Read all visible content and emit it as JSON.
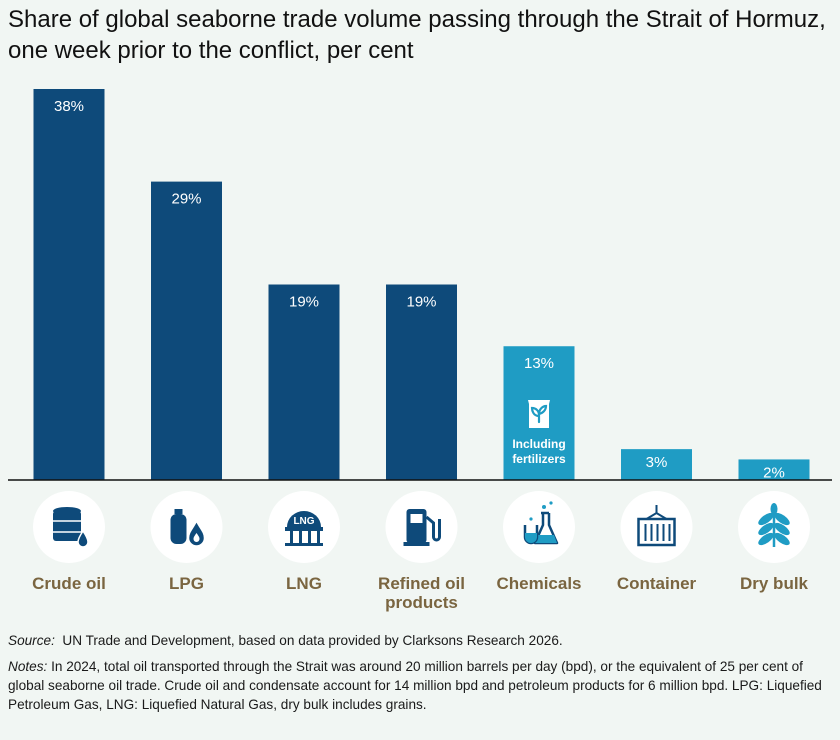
{
  "title": "Share of global seaborne trade volume passing through the Strait of Hormuz, one week prior to the conflict, per cent",
  "colors": {
    "dark_bar": "#0e4a7a",
    "light_bar": "#1f9cc4",
    "icon_circle": "#ffffff",
    "label": "#7a6540",
    "background": "#f1f6f3"
  },
  "chart_data": {
    "type": "bar",
    "title": "Share of global seaborne trade volume passing through the Strait of Hormuz, one week prior to the conflict, per cent",
    "categories": [
      "Crude oil",
      "LPG",
      "LNG",
      "Refined oil products",
      "Chemicals",
      "Container",
      "Dry bulk"
    ],
    "category_lines": [
      [
        "Crude oil"
      ],
      [
        "LPG"
      ],
      [
        "LNG"
      ],
      [
        "Refined oil",
        "products"
      ],
      [
        "Chemicals"
      ],
      [
        "Container"
      ],
      [
        "Dry bulk"
      ]
    ],
    "values": [
      38,
      29,
      19,
      19,
      13,
      3,
      2
    ],
    "value_labels": [
      "38%",
      "29%",
      "19%",
      "19%",
      "13%",
      "3%",
      "2%"
    ],
    "bar_colors": [
      "dark",
      "dark",
      "dark",
      "dark",
      "light",
      "light",
      "light"
    ],
    "icons": [
      "oil-barrel-icon",
      "gas-cylinder-icon",
      "lng-tank-icon",
      "fuel-pump-icon",
      "flask-icon",
      "container-icon",
      "wheat-icon"
    ],
    "annotation": {
      "category": "Chemicals",
      "icon": "fertilizer-bag-icon",
      "lines": [
        "Including",
        "fertilizers"
      ]
    },
    "lng_icon_text": "LNG",
    "xlabel": "",
    "ylabel": "",
    "ylim": [
      0,
      38
    ]
  },
  "source": {
    "label": "Source:",
    "text": "UN Trade and Development, based on data provided by Clarksons Research 2026."
  },
  "notes": {
    "label": "Notes:",
    "text": "In 2024, total oil transported through the Strait was around 20 million barrels per day (bpd), or the equivalent of 25 per cent of global seaborne oil trade. Crude oil and condensate account for 14 million bpd and petroleum products for 6 million bpd. LPG: Liquefied Petroleum Gas, LNG: Liquefied Natural Gas, dry bulk includes grains."
  }
}
